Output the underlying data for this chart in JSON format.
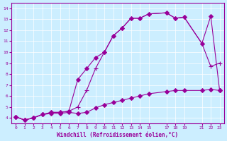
{
  "xlabel": "Windchill (Refroidissement éolien,°C)",
  "bg_color": "#cceeff",
  "line_color": "#990099",
  "xlim": [
    -0.5,
    23.5
  ],
  "ylim": [
    3.5,
    14.5
  ],
  "xtick_positions": [
    0,
    1,
    2,
    3,
    4,
    5,
    6,
    7,
    8,
    9,
    10,
    11,
    12,
    13,
    14,
    15,
    17,
    18,
    19,
    21,
    22,
    23
  ],
  "xtick_labels": [
    "0",
    "1",
    "2",
    "3",
    "4",
    "5",
    "6",
    "7",
    "8",
    "9",
    "10",
    "11",
    "12",
    "13",
    "14",
    "15",
    "17",
    "18",
    "19",
    "21",
    "22",
    "23"
  ],
  "yticks": [
    4,
    5,
    6,
    7,
    8,
    9,
    10,
    11,
    12,
    13,
    14
  ],
  "series": [
    {
      "x": [
        0,
        1,
        2,
        3,
        4,
        5,
        6,
        7,
        8,
        9,
        10,
        11,
        12,
        13,
        14,
        15,
        17,
        18,
        19,
        21,
        22,
        23
      ],
      "y": [
        4.1,
        3.8,
        4.0,
        4.3,
        4.5,
        4.5,
        4.6,
        7.5,
        8.5,
        9.5,
        10.0,
        11.5,
        12.2,
        13.1,
        13.1,
        13.5,
        13.6,
        13.1,
        13.2,
        10.8,
        13.3,
        6.5
      ],
      "marker": "D",
      "markersize": 3
    },
    {
      "x": [
        0,
        1,
        2,
        3,
        4,
        5,
        6,
        7,
        8,
        9,
        10,
        11,
        12,
        13,
        14,
        15,
        17,
        18,
        19,
        21,
        22,
        23
      ],
      "y": [
        4.1,
        3.8,
        4.0,
        4.3,
        4.5,
        4.5,
        4.6,
        5.0,
        6.5,
        8.5,
        10.0,
        11.5,
        12.2,
        13.1,
        13.1,
        13.5,
        13.6,
        13.1,
        13.2,
        10.8,
        8.7,
        9.0
      ],
      "marker": "+",
      "markersize": 5
    },
    {
      "x": [
        0,
        1,
        2,
        3,
        4,
        5,
        6,
        7,
        8,
        9,
        10,
        11,
        12,
        13,
        14,
        15,
        17,
        18,
        19,
        21,
        22,
        23
      ],
      "y": [
        4.1,
        3.8,
        4.0,
        4.3,
        4.4,
        4.4,
        4.5,
        4.4,
        4.5,
        4.9,
        5.2,
        5.4,
        5.6,
        5.8,
        6.0,
        6.2,
        6.4,
        6.5,
        6.5,
        6.5,
        6.6,
        6.5
      ],
      "marker": "D",
      "markersize": 3
    }
  ]
}
